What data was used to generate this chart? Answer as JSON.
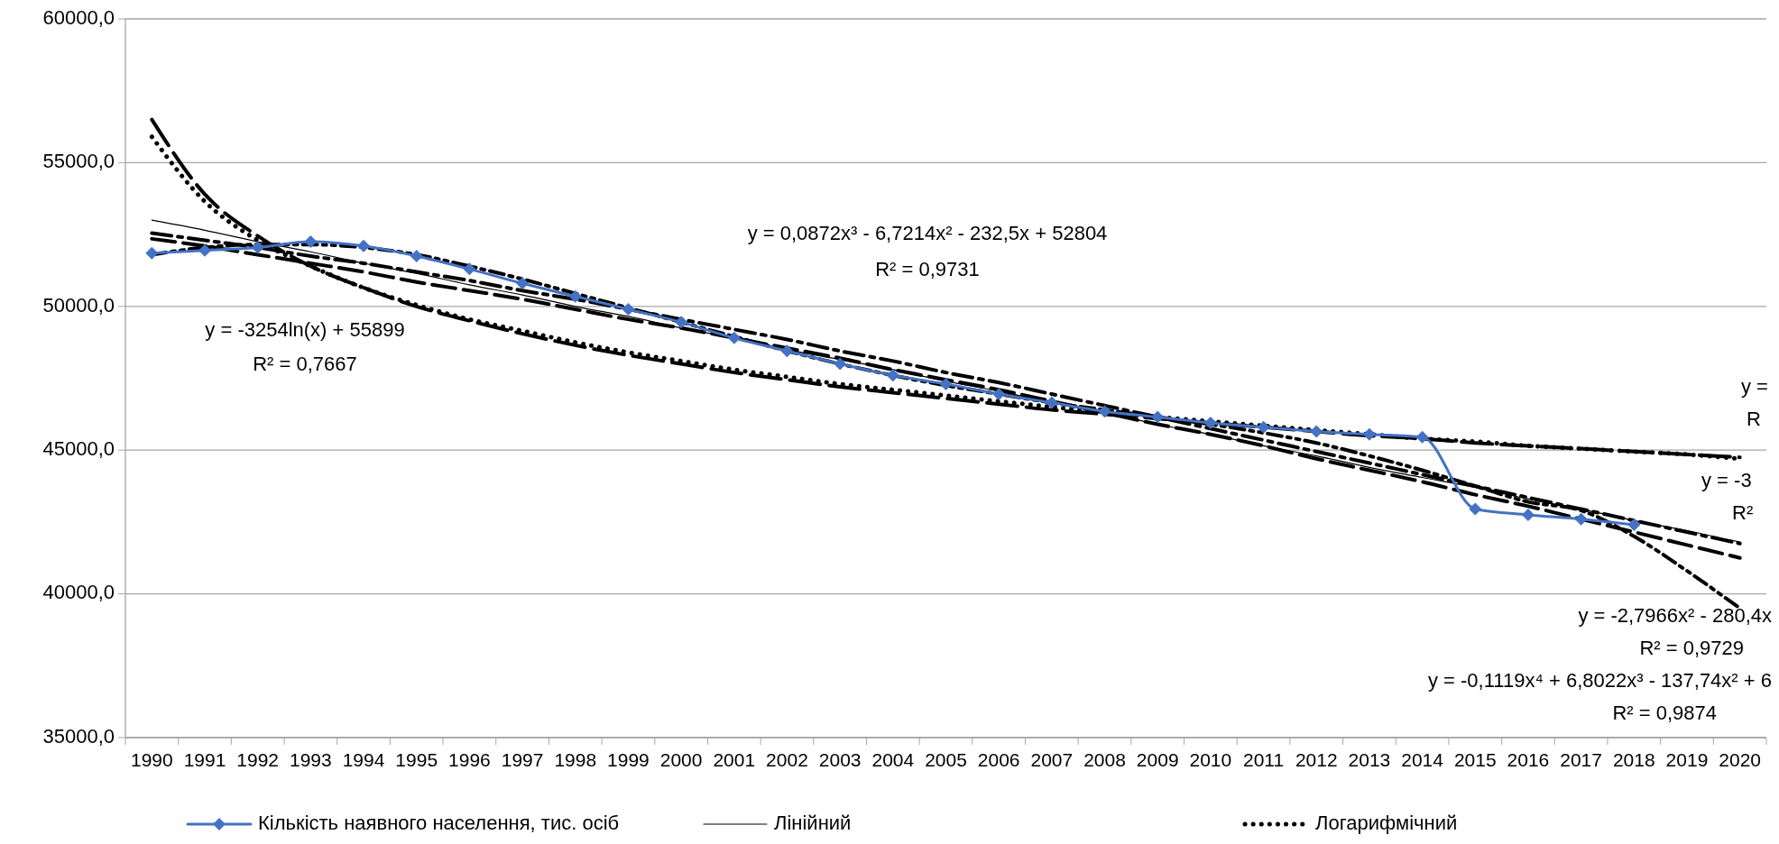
{
  "chart_data": {
    "type": "line",
    "categories": [
      "1990",
      "1991",
      "1992",
      "1993",
      "1994",
      "1995",
      "1996",
      "1997",
      "1998",
      "1999",
      "2000",
      "2001",
      "2002",
      "2003",
      "2004",
      "2005",
      "2006",
      "2007",
      "2008",
      "2009",
      "2010",
      "2011",
      "2012",
      "2013",
      "2014",
      "2015",
      "2016",
      "2017",
      "2018",
      "2019",
      "2020"
    ],
    "series": [
      {
        "name": "Кількість наявного населення, тис. осіб",
        "color": "#4472c4",
        "marker": "diamond",
        "line_style": "solid",
        "values": [
          51850,
          51950,
          52050,
          52250,
          52100,
          51750,
          51300,
          50800,
          50350,
          49900,
          49450,
          48900,
          48450,
          48000,
          47600,
          47300,
          46950,
          46650,
          46350,
          46150,
          45950,
          45800,
          45650,
          45550,
          45450,
          42950,
          42750,
          42600,
          42400,
          null,
          null
        ]
      },
      {
        "name": "Лінійний",
        "color": "#000000",
        "marker": "none",
        "line_style": "solid",
        "values": [
          53000,
          52650,
          52250,
          51900,
          51500,
          51150,
          50750,
          50400,
          50000,
          49650,
          49250,
          48900,
          48500,
          48150,
          47800,
          47400,
          47050,
          46650,
          46300,
          45900,
          45550,
          45150,
          44800,
          44400,
          44050,
          43700,
          43300,
          42950,
          42550,
          42200,
          41800
        ]
      },
      {
        "name": "Логарифмічний",
        "color": "#000000",
        "marker": "none",
        "line_style": "dotted",
        "values": [
          55900,
          53650,
          52300,
          51400,
          50650,
          50050,
          49550,
          49150,
          48750,
          48400,
          48100,
          47800,
          47550,
          47300,
          47100,
          46900,
          46700,
          46500,
          46300,
          46150,
          46000,
          45850,
          45700,
          45550,
          45400,
          45300,
          45150,
          45050,
          44950,
          44850,
          44700
        ]
      },
      {
        "color": "#000000",
        "marker": "none",
        "line_style": "dashed",
        "values": [
          52350,
          52100,
          51800,
          51500,
          51200,
          50850,
          50550,
          50250,
          49900,
          49550,
          49250,
          48900,
          48550,
          48200,
          47800,
          47450,
          47100,
          46700,
          46300,
          45900,
          45550,
          45150,
          44700,
          44300,
          43900,
          43450,
          43050,
          42600,
          42150,
          41700,
          41250
        ]
      },
      {
        "color": "#000000",
        "marker": "none",
        "line_style": "dashed",
        "values": [
          52550,
          52300,
          52050,
          51750,
          51500,
          51200,
          50900,
          50550,
          50250,
          49900,
          49550,
          49200,
          48850,
          48450,
          48100,
          47700,
          47350,
          46950,
          46550,
          46150,
          45750,
          45350,
          44950,
          44550,
          44150,
          43750,
          43350,
          42950,
          42550,
          42150,
          41750
        ]
      },
      {
        "color": "#000000",
        "marker": "none",
        "line_style": "dashed",
        "values": [
          51800,
          52050,
          52150,
          52150,
          52050,
          51800,
          51400,
          50950,
          50450,
          49950,
          49450,
          48950,
          48450,
          48000,
          47600,
          47250,
          46950,
          46650,
          46400,
          46150,
          45900,
          45600,
          45250,
          44800,
          44300,
          43750,
          43200,
          42900,
          42000,
          40800,
          39500
        ]
      },
      {
        "color": "#000000",
        "marker": "none",
        "line_style": "dashed",
        "values": [
          56500,
          53900,
          52450,
          51400,
          50650,
          50000,
          49500,
          49050,
          48650,
          48300,
          48000,
          47700,
          47450,
          47200,
          47000,
          46800,
          46600,
          46400,
          46250,
          46100,
          45950,
          45800,
          45650,
          45500,
          45400,
          45250,
          45150,
          45050,
          44950,
          44850,
          44750
        ]
      }
    ],
    "ylim": [
      35000,
      60000
    ],
    "yticks": [
      {
        "value": 35000,
        "label": "35000,0"
      },
      {
        "value": 40000,
        "label": "40000,0"
      },
      {
        "value": 45000,
        "label": "45000,0"
      },
      {
        "value": 50000,
        "label": "50000,0"
      },
      {
        "value": 55000,
        "label": "55000,0"
      },
      {
        "value": 60000,
        "label": "60000,0"
      }
    ],
    "grid": "y",
    "legend": "bottom",
    "annotations": [
      "y = 0,0872x³ - 6,7214x² - 232,5x + 52804",
      "R² = 0,9731",
      "y = -3254ln(x) + 55899",
      "R² = 0,7667",
      "y =",
      "R",
      "y = -3",
      "R²",
      "y = -2,7966x² - 280,4x",
      "R² = 0,9729",
      "y = -0,1119x⁴ + 6,8022x³ - 137,74x² + 6",
      "R² = 0,9874"
    ]
  }
}
